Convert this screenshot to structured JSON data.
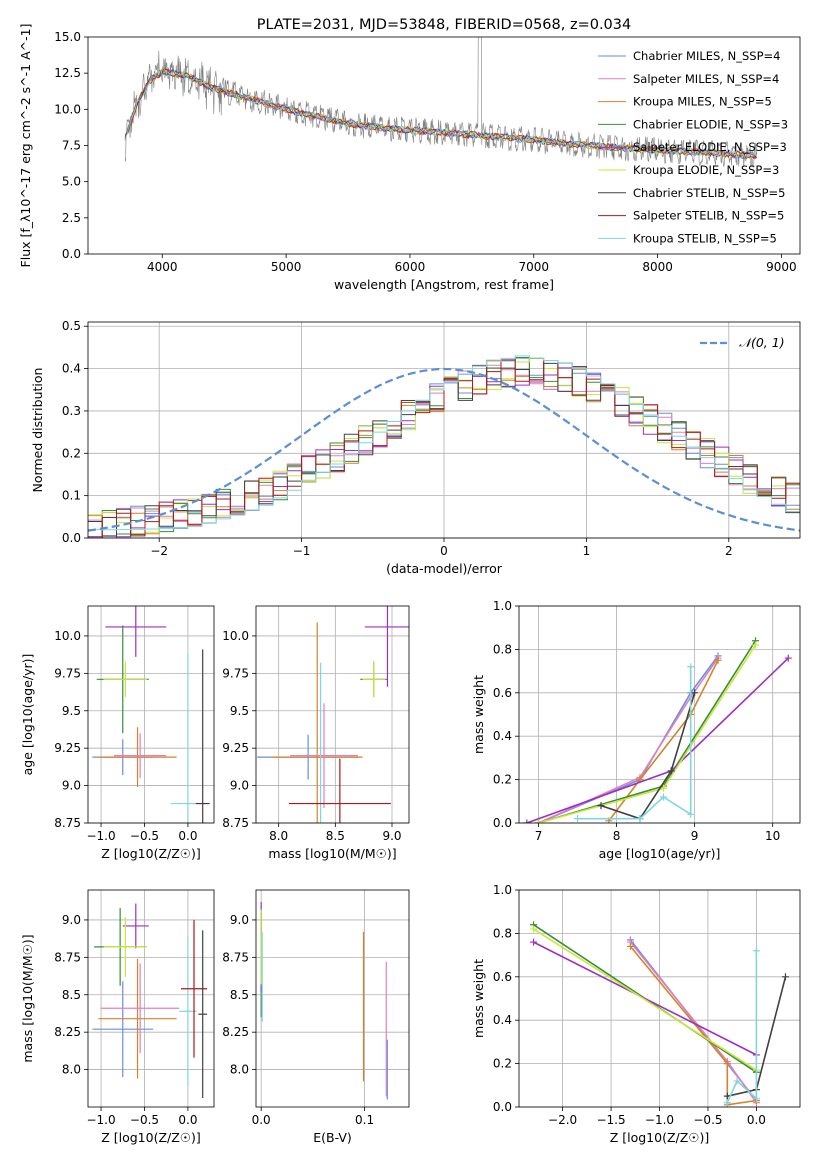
{
  "chart_data": [
    {
      "id": "spectrum",
      "type": "line",
      "title": "PLATE=2031, MJD=53848, FIBERID=0568, z=0.034",
      "xlabel": "wavelength [Angstrom, rest frame]",
      "ylabel": "Flux [f_λ10^-17 erg cm^-2 s^-1 A^-1]",
      "xlim": [
        3400,
        9150
      ],
      "ylim": [
        0,
        15
      ],
      "xticks": [
        4000,
        5000,
        6000,
        7000,
        8000,
        9000
      ],
      "yticks": [
        0.0,
        2.5,
        5.0,
        7.5,
        10.0,
        12.5,
        15.0
      ],
      "grid": false,
      "legend_position": "upper right",
      "data_color": "#808080",
      "series": [
        {
          "name": "Chabrier MILES, N_SSP=4",
          "color": "#6a8fdb"
        },
        {
          "name": "Salpeter MILES, N_SSP=4",
          "color": "#e27fc0"
        },
        {
          "name": "Kroupa MILES, N_SSP=5",
          "color": "#d3842a"
        },
        {
          "name": "Chabrier ELODIE, N_SSP=3",
          "color": "#3a8d3a"
        },
        {
          "name": "Salpeter ELODIE, N_SSP=3",
          "color": "#9b30c0"
        },
        {
          "name": "Kroupa ELODIE, N_SSP=3",
          "color": "#c8e83a"
        },
        {
          "name": "Chabrier STELIB, N_SSP=5",
          "color": "#404040"
        },
        {
          "name": "Salpeter STELIB, N_SSP=5",
          "color": "#b01818"
        },
        {
          "name": "Kroupa STELIB, N_SSP=5",
          "color": "#7fd6e0"
        }
      ],
      "model_points": [
        [
          3700,
          8.0
        ],
        [
          3800,
          10.5
        ],
        [
          3900,
          12.0
        ],
        [
          4000,
          12.6
        ],
        [
          4200,
          12.3
        ],
        [
          4400,
          11.5
        ],
        [
          4600,
          11.0
        ],
        [
          4800,
          10.5
        ],
        [
          5000,
          10.0
        ],
        [
          5200,
          9.6
        ],
        [
          5500,
          9.0
        ],
        [
          5800,
          8.7
        ],
        [
          6100,
          8.5
        ],
        [
          6400,
          8.3
        ],
        [
          6700,
          8.1
        ],
        [
          7000,
          7.9
        ],
        [
          7300,
          7.6
        ],
        [
          7600,
          7.4
        ],
        [
          8000,
          7.2
        ],
        [
          8400,
          7.0
        ],
        [
          8800,
          6.8
        ]
      ]
    },
    {
      "id": "residuals",
      "type": "histogram",
      "xlabel": "(data-model)/error",
      "ylabel": "Normed distribution",
      "xlim": [
        -2.5,
        2.5
      ],
      "ylim": [
        0,
        0.51
      ],
      "xticks": [
        -2,
        -1,
        0,
        1,
        2
      ],
      "yticks": [
        0.0,
        0.1,
        0.2,
        0.3,
        0.4,
        0.5
      ],
      "grid": true,
      "legend_position": "upper right",
      "legend_label": "𝒩(0, 1)",
      "normal_curve_color": "#5b8fd6",
      "bin_width": 0.1,
      "bin_start": -2.5,
      "base_counts": [
        0.025,
        0.03,
        0.035,
        0.04,
        0.045,
        0.05,
        0.055,
        0.06,
        0.07,
        0.08,
        0.09,
        0.1,
        0.11,
        0.125,
        0.14,
        0.16,
        0.175,
        0.19,
        0.21,
        0.23,
        0.25,
        0.27,
        0.29,
        0.31,
        0.33,
        0.345,
        0.36,
        0.375,
        0.385,
        0.39,
        0.395,
        0.39,
        0.385,
        0.38,
        0.37,
        0.355,
        0.34,
        0.32,
        0.3,
        0.28,
        0.26,
        0.24,
        0.22,
        0.2,
        0.18,
        0.16,
        0.14,
        0.125,
        0.11,
        0.095
      ]
    },
    {
      "id": "age_vs_Z",
      "type": "errorbar",
      "xlabel": "Z [log10(Z/Z☉)]",
      "ylabel": "age  [log10(age/yr)]",
      "xlim": [
        -1.15,
        0.3
      ],
      "ylim": [
        8.75,
        10.2
      ],
      "xticks": [
        -1.0,
        -0.5,
        0.0
      ],
      "yticks": [
        8.75,
        9.0,
        9.25,
        9.5,
        9.75,
        10.0
      ],
      "grid": true,
      "points": [
        {
          "x": -0.75,
          "y": 9.19,
          "xerr": 0.35,
          "yerr": 0.12,
          "color": "#6a8fdb"
        },
        {
          "x": -0.58,
          "y": 9.19,
          "xerr": 0.45,
          "yerr": 0.2,
          "color": "#d3842a"
        },
        {
          "x": -0.55,
          "y": 9.2,
          "xerr": 0.3,
          "yerr": 0.15,
          "color": "#e27fc0"
        },
        {
          "x": -0.75,
          "y": 9.71,
          "xerr": 0.3,
          "yerr": 0.36,
          "color": "#3a8d3a"
        },
        {
          "x": -0.6,
          "y": 10.06,
          "xerr": 0.35,
          "yerr": 0.2,
          "color": "#9b30c0"
        },
        {
          "x": -0.72,
          "y": 9.71,
          "xerr": 0.25,
          "yerr": 0.12,
          "color": "#c8e83a"
        },
        {
          "x": 0.0,
          "y": 8.88,
          "xerr": 0.2,
          "yerr": 1.0,
          "color": "#7fd6e0"
        },
        {
          "x": 0.17,
          "y": 8.88,
          "xerr": 0.08,
          "yerr": 1.03,
          "color": "#404040"
        }
      ]
    },
    {
      "id": "age_vs_mass",
      "type": "errorbar",
      "xlabel": "mass [log10(M/M☉)]",
      "ylabel": "",
      "xlim": [
        7.8,
        9.15
      ],
      "ylim": [
        8.75,
        10.2
      ],
      "xticks": [
        8.0,
        8.5,
        9.0
      ],
      "yticks": [
        8.75,
        9.0,
        9.25,
        9.5,
        9.75,
        10.0
      ],
      "grid": true,
      "points": [
        {
          "x": 8.26,
          "y": 9.19,
          "xerr": 0.45,
          "yerr": 0.15,
          "color": "#6a8fdb"
        },
        {
          "x": 8.34,
          "y": 9.19,
          "xerr": 0.4,
          "yerr": 0.9,
          "color": "#d3842a"
        },
        {
          "x": 8.4,
          "y": 9.2,
          "xerr": 0.3,
          "yerr": 0.35,
          "color": "#e27fc0"
        },
        {
          "x": 8.37,
          "y": 8.88,
          "xerr": 0.1,
          "yerr": 0.94,
          "color": "#7fd6e0"
        },
        {
          "x": 8.54,
          "y": 8.88,
          "xerr": 0.45,
          "yerr": 0.3,
          "color": "#b01818"
        },
        {
          "x": 8.84,
          "y": 9.71,
          "xerr": 0.12,
          "yerr": 0.12,
          "color": "#3a8d3a"
        },
        {
          "x": 8.96,
          "y": 10.06,
          "xerr": 0.2,
          "yerr": 0.4,
          "color": "#9b30c0"
        },
        {
          "x": 8.84,
          "y": 9.71,
          "xerr": 0.1,
          "yerr": 0.12,
          "color": "#c8e83a"
        }
      ]
    },
    {
      "id": "weight_vs_age",
      "type": "line",
      "xlabel": "age  [log10(age/yr)]",
      "ylabel": "mass weight",
      "xlim": [
        6.75,
        10.35
      ],
      "ylim": [
        0,
        1
      ],
      "xticks": [
        7,
        8,
        9,
        10
      ],
      "yticks": [
        0.0,
        0.2,
        0.4,
        0.6,
        0.8,
        1.0
      ],
      "grid": true,
      "series": [
        {
          "color": "#6a8fdb",
          "x": [
            7.0,
            8.3,
            8.95,
            9.3
          ],
          "y": [
            0.0,
            0.2,
            0.6,
            0.77
          ]
        },
        {
          "color": "#e27fc0",
          "x": [
            7.0,
            8.3,
            8.95,
            9.3
          ],
          "y": [
            0.0,
            0.21,
            0.58,
            0.76
          ]
        },
        {
          "color": "#d3842a",
          "x": [
            7.9,
            8.3,
            8.95,
            9.3
          ],
          "y": [
            0.01,
            0.2,
            0.5,
            0.75
          ]
        },
        {
          "color": "#3a8d3a",
          "x": [
            7.0,
            8.6,
            9.78
          ],
          "y": [
            0.0,
            0.17,
            0.84
          ]
        },
        {
          "color": "#9b30c0",
          "x": [
            6.85,
            8.7,
            10.2
          ],
          "y": [
            0.0,
            0.24,
            0.76
          ]
        },
        {
          "color": "#c8e83a",
          "x": [
            7.0,
            8.6,
            9.78
          ],
          "y": [
            0.0,
            0.16,
            0.82
          ]
        },
        {
          "color": "#404040",
          "x": [
            7.8,
            8.3,
            8.7,
            9.0
          ],
          "y": [
            0.08,
            0.02,
            0.24,
            0.6
          ]
        },
        {
          "color": "#7fd6e0",
          "x": [
            7.5,
            8.3,
            8.6,
            8.95,
            8.95
          ],
          "y": [
            0.02,
            0.02,
            0.12,
            0.04,
            0.72
          ]
        }
      ]
    },
    {
      "id": "mass_vs_Z",
      "type": "errorbar",
      "xlabel": "Z [log10(Z/Z☉)]",
      "ylabel": "mass [log10(M/M☉)]",
      "xlim": [
        -1.15,
        0.3
      ],
      "ylim": [
        7.75,
        9.2
      ],
      "xticks": [
        -1.0,
        -0.5,
        0.0
      ],
      "yticks": [
        8.0,
        8.25,
        8.5,
        8.75,
        9.0
      ],
      "grid": true,
      "points": [
        {
          "x": -0.75,
          "y": 8.27,
          "xerr": 0.35,
          "yerr": 0.32,
          "color": "#6a8fdb"
        },
        {
          "x": -0.58,
          "y": 8.34,
          "xerr": 0.45,
          "yerr": 0.4,
          "color": "#d3842a"
        },
        {
          "x": -0.55,
          "y": 8.41,
          "xerr": 0.45,
          "yerr": 0.3,
          "color": "#e27fc0"
        },
        {
          "x": -0.78,
          "y": 8.82,
          "xerr": 0.3,
          "yerr": 0.26,
          "color": "#3a8d3a"
        },
        {
          "x": -0.6,
          "y": 8.96,
          "xerr": 0.15,
          "yerr": 0.15,
          "color": "#9b30c0"
        },
        {
          "x": -0.72,
          "y": 8.82,
          "xerr": 0.25,
          "yerr": 0.2,
          "color": "#c8e83a"
        },
        {
          "x": 0.0,
          "y": 8.39,
          "xerr": 0.1,
          "yerr": 0.5,
          "color": "#7fd6e0"
        },
        {
          "x": 0.07,
          "y": 8.54,
          "xerr": 0.15,
          "yerr": 0.46,
          "color": "#b01818"
        },
        {
          "x": 0.17,
          "y": 8.37,
          "xerr": 0.05,
          "yerr": 0.56,
          "color": "#404040"
        }
      ]
    },
    {
      "id": "mass_vs_ebv",
      "type": "errorbar",
      "xlabel": "E(B-V)",
      "ylabel": "",
      "xlim": [
        -0.005,
        0.143
      ],
      "ylim": [
        7.75,
        9.2
      ],
      "xticks": [
        0.0,
        0.1
      ],
      "yticks": [
        8.0,
        8.25,
        8.5,
        8.75,
        9.0
      ],
      "grid": true,
      "points": [
        {
          "x": 0.0,
          "y": 8.7,
          "yerr": 0.35,
          "color": "#3a8d3a"
        },
        {
          "x": 0.0,
          "y": 8.82,
          "yerr": 0.3,
          "color": "#9b30c0"
        },
        {
          "x": 0.0,
          "y": 8.82,
          "yerr": 0.25,
          "color": "#c8e83a"
        },
        {
          "x": 0.001,
          "y": 8.62,
          "yerr": 0.3,
          "color": "#7fd6e0"
        },
        {
          "x": 0.099,
          "y": 8.42,
          "yerr": 0.5,
          "color": "#d3842a"
        },
        {
          "x": 0.121,
          "y": 8.27,
          "yerr": 0.45,
          "color": "#e27fc0"
        },
        {
          "x": 0.122,
          "y": 8.0,
          "yerr": 0.2,
          "color": "#6a8fdb"
        }
      ]
    },
    {
      "id": "weight_vs_Z",
      "type": "line",
      "xlabel": "Z [log10(Z/Z☉)]",
      "ylabel": "mass weight",
      "xlim": [
        -2.45,
        0.45
      ],
      "ylim": [
        0,
        1
      ],
      "xticks": [
        -2.0,
        -1.5,
        -1.0,
        -0.5,
        0.0
      ],
      "yticks": [
        0.0,
        0.2,
        0.4,
        0.6,
        0.8,
        1.0
      ],
      "grid": true,
      "series": [
        {
          "color": "#6a8fdb",
          "x": [
            -1.3,
            -0.3,
            0.0
          ],
          "y": [
            0.77,
            0.2,
            0.03
          ]
        },
        {
          "color": "#e27fc0",
          "x": [
            -1.3,
            -0.3,
            0.0
          ],
          "y": [
            0.76,
            0.21,
            0.02
          ]
        },
        {
          "color": "#d3842a",
          "x": [
            -1.3,
            -0.3,
            -0.3,
            0.0
          ],
          "y": [
            0.74,
            0.2,
            0.01,
            0.03
          ]
        },
        {
          "color": "#3a8d3a",
          "x": [
            -2.3,
            0.0
          ],
          "y": [
            0.84,
            0.16
          ]
        },
        {
          "color": "#9b30c0",
          "x": [
            -2.3,
            0.0
          ],
          "y": [
            0.76,
            0.24
          ]
        },
        {
          "color": "#c8e83a",
          "x": [
            -2.3,
            0.0
          ],
          "y": [
            0.82,
            0.17
          ]
        },
        {
          "color": "#404040",
          "x": [
            -0.3,
            0.0,
            0.3
          ],
          "y": [
            0.05,
            0.08,
            0.6
          ]
        },
        {
          "color": "#7fd6e0",
          "x": [
            -0.3,
            -0.2,
            0.0,
            0.0
          ],
          "y": [
            0.02,
            0.12,
            0.04,
            0.72
          ]
        }
      ]
    }
  ]
}
